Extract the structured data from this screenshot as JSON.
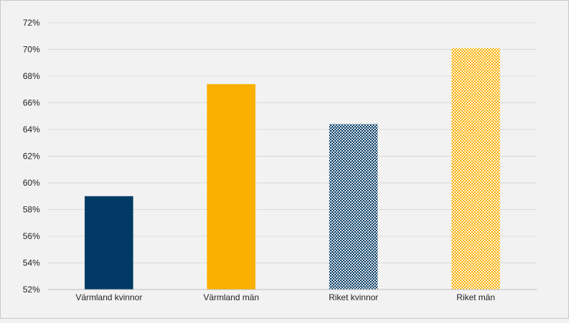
{
  "chart_data": {
    "type": "bar",
    "title": "",
    "xlabel": "",
    "ylabel": "",
    "categories": [
      "Värmland kvinnor",
      "Värmland män",
      "Riket kvinnor",
      "Riket män"
    ],
    "values": [
      59.0,
      67.4,
      64.4,
      70.1
    ],
    "ylim": [
      52,
      72
    ],
    "yticks": [
      52,
      54,
      56,
      58,
      60,
      62,
      64,
      66,
      68,
      70,
      72
    ],
    "ytick_labels": [
      "52%",
      "54%",
      "56%",
      "58%",
      "60%",
      "62%",
      "64%",
      "66%",
      "68%",
      "70%",
      "72%"
    ],
    "grid": true,
    "legend": "none",
    "bar_styles": [
      {
        "color": "#003a64",
        "pattern": "solid"
      },
      {
        "color": "#f9b000",
        "pattern": "solid"
      },
      {
        "color": "#003a64",
        "pattern": "dotted"
      },
      {
        "color": "#f9b000",
        "pattern": "dotted"
      }
    ]
  }
}
